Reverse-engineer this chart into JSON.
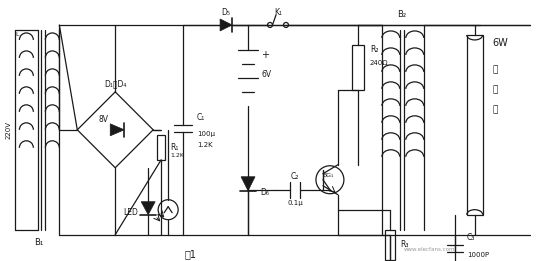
{
  "title": "图1",
  "bg_color": "#ffffff",
  "line_color": "#1a1a1a",
  "labels": {
    "B1": "B₁",
    "B2": "B₂",
    "D1D4": "D₁～D₄",
    "D5": "D₅",
    "D6": "D₆",
    "K1": "K₁",
    "C1": "C₁",
    "C2": "C₂",
    "C3": "C₃",
    "R1": "R₁",
    "R2": "R₂",
    "R3": "R₃",
    "8V": "8V",
    "220V": "220V",
    "6V": "6V",
    "100u": "100μ",
    "1.2K": "1.2K",
    "240ohm": "240Ω",
    "0.1u": "0.1μ",
    "1000P": "1000P",
    "6W": "6W",
    "fluor1": "荧",
    "fluor2": "光",
    "fluor3": "灯",
    "LED": "LED",
    "BG1": "BG₁",
    "plus": "+"
  }
}
